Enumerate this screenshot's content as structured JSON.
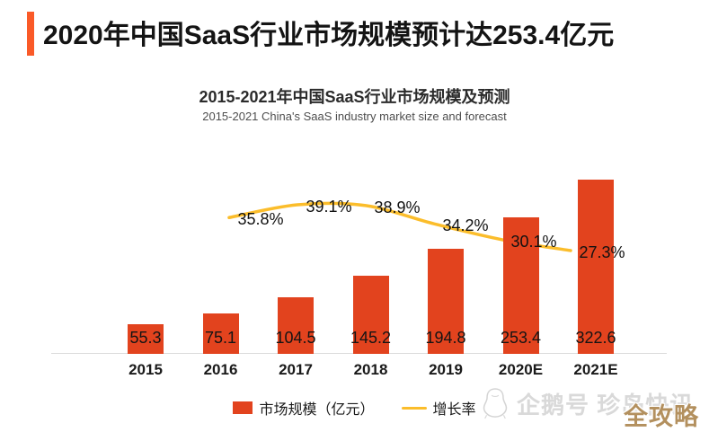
{
  "header": {
    "title": "2020年中国SaaS行业市场规模预计达253.4亿元"
  },
  "chart": {
    "title": "2015-2021年中国SaaS行业市场规模及预测",
    "subtitle": "2015-2021 China's SaaS industry market size and forecast",
    "legend": [
      {
        "label": "市场规模（亿元）",
        "type": "bar"
      },
      {
        "label": "增长率",
        "type": "line"
      }
    ]
  },
  "chart_data": {
    "type": "bar+line",
    "categories": [
      "2015",
      "2016",
      "2017",
      "2018",
      "2019",
      "2020E",
      "2021E"
    ],
    "series": [
      {
        "name": "市场规模（亿元）",
        "type": "bar",
        "color": "#E2431E",
        "values": [
          55.3,
          75.1,
          104.5,
          145.2,
          194.8,
          253.4,
          322.6
        ],
        "value_labels": [
          "55.3",
          "75.1",
          "104.5",
          "145.2",
          "194.8",
          "253.4",
          "322.6"
        ]
      },
      {
        "name": "增长率",
        "type": "line",
        "color": "#FBBD2B",
        "values": [
          null,
          35.8,
          39.1,
          38.9,
          34.2,
          30.1,
          27.3
        ],
        "value_labels": [
          "35.8%",
          "39.1%",
          "38.9%",
          "34.2%",
          "30.1%",
          "27.3%"
        ]
      }
    ],
    "title": "2015-2021年中国SaaS行业市场规模及预测",
    "subtitle": "2015-2021 China's SaaS industry market size and forecast",
    "xlabel": "",
    "ylabel": "",
    "ylim": [
      0,
      390
    ],
    "grid": false,
    "legend_position": "bottom"
  },
  "watermark": {
    "source": "企鹅号 珍岛快讯",
    "badge": "全攻略",
    "icon": "penguin-outline-icon"
  },
  "colors": {
    "accent": "#FA5A28",
    "bar": "#E2431E",
    "line": "#FBBD2B",
    "axis": "#DCDCDC",
    "watermark_gray": "#D9D9D9",
    "badge_tan": "#B3905E"
  }
}
